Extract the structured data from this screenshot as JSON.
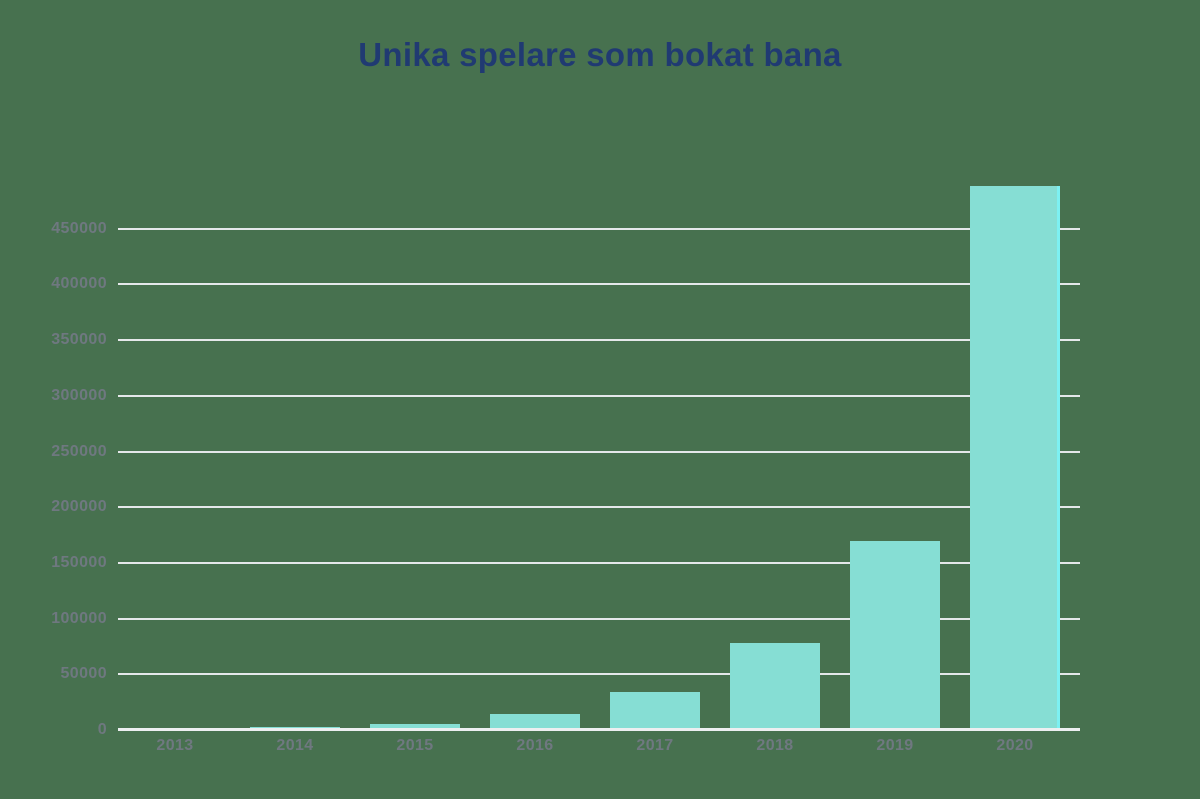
{
  "chart_data": {
    "type": "bar",
    "title": "Unika spelare som bokat bana",
    "categories": [
      "2013",
      "2014",
      "2015",
      "2016",
      "2017",
      "2018",
      "2019",
      "2020"
    ],
    "values": [
      1000,
      2500,
      5000,
      14000,
      34000,
      78000,
      170000,
      488000
    ],
    "series": [
      {
        "name": "Unika spelare som bokat bana",
        "values": [
          1000,
          2500,
          5000,
          14000,
          34000,
          78000,
          170000,
          488000
        ]
      }
    ],
    "xlabel": "",
    "ylabel": "",
    "ylim": [
      0,
      500000
    ],
    "yticks": [
      0,
      50000,
      100000,
      150000,
      200000,
      250000,
      300000,
      350000,
      400000,
      450000
    ],
    "ytick_format": "plain-integer-no-separator",
    "grid": true,
    "legend": "none",
    "background": "#47714f",
    "colors": {
      "title": "#203a72",
      "bar_fill": "#86ded4",
      "bar_edge_highlight": "#7df0f2",
      "gridline": "#e5e8ea",
      "axis_line": "#edeff1",
      "tick_label": "#6f7880"
    }
  }
}
